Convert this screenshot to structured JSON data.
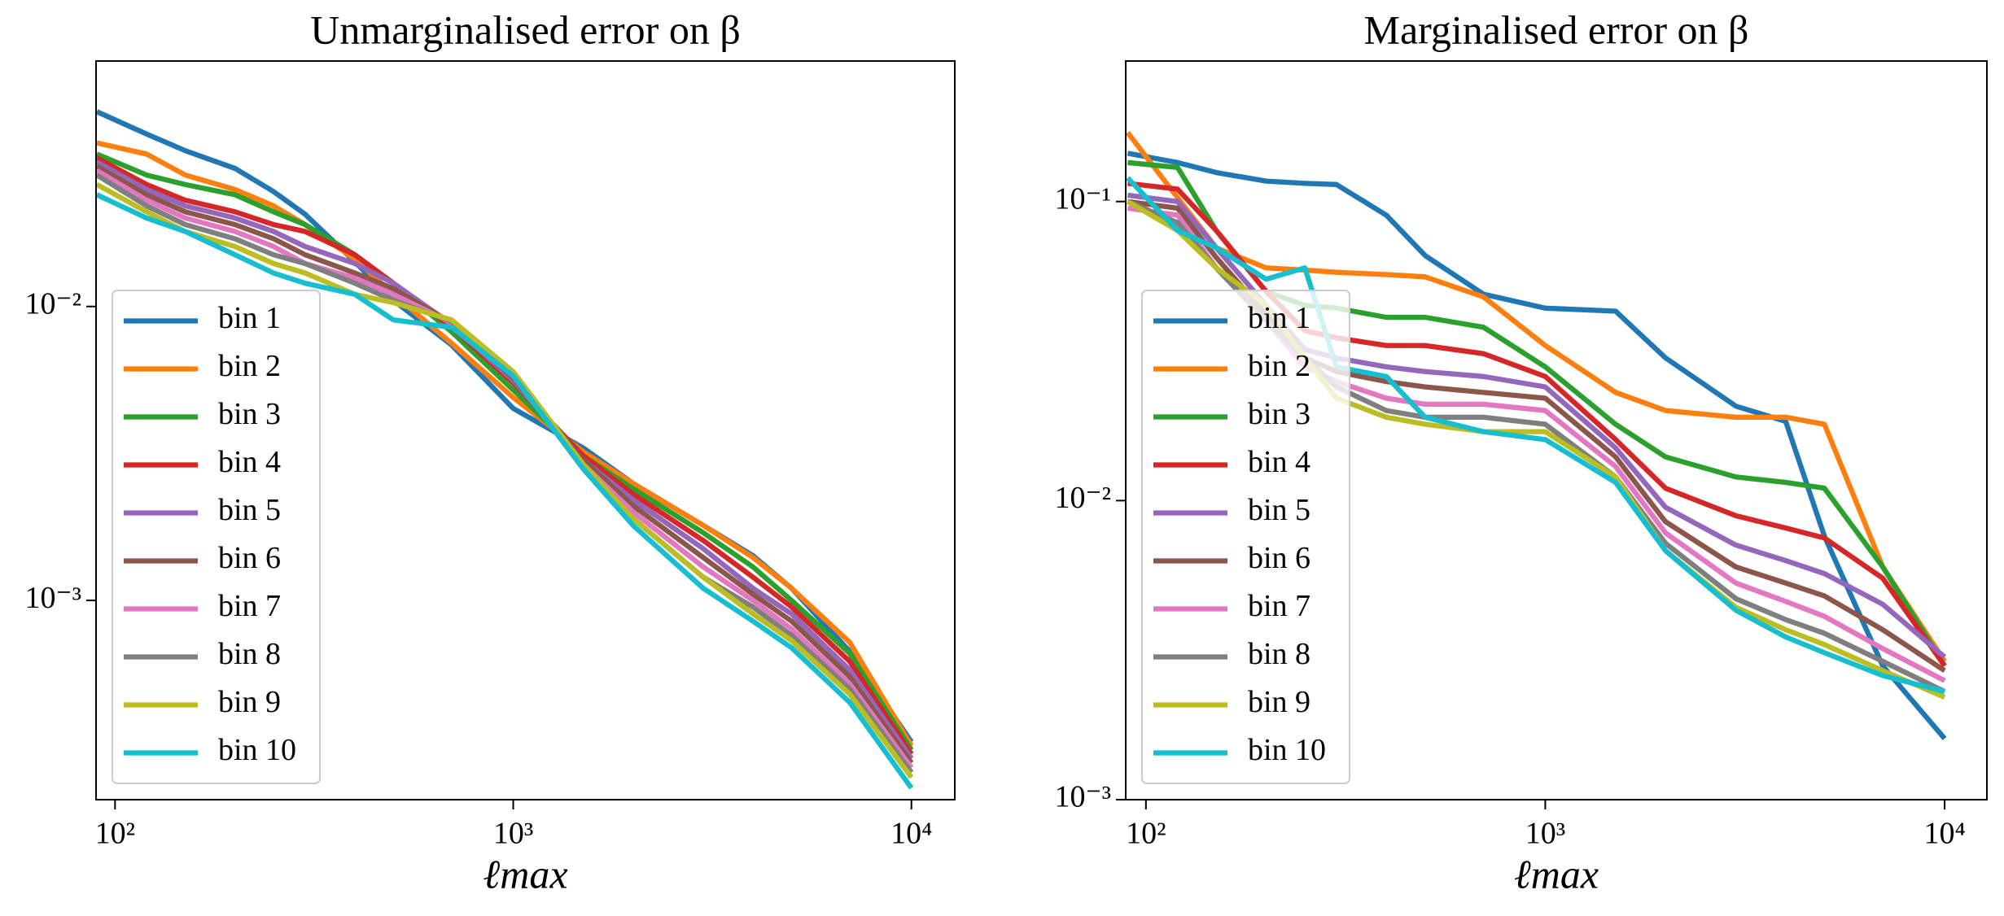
{
  "chart_data": [
    {
      "type": "line",
      "title": "Unmarginalised error on β",
      "x_label": "ℓmax",
      "xscale": "log",
      "yscale": "log",
      "legend": "lower left",
      "xlim": [
        89.6,
        12850
      ],
      "ylim": [
        0.00021,
        0.0684
      ],
      "xticks": [
        {
          "value": 100,
          "label": "10²"
        },
        {
          "value": 1000,
          "label": "10³"
        },
        {
          "value": 10000,
          "label": "10⁴"
        }
      ],
      "yticks": [
        {
          "value": 0.001,
          "label": "10⁻³"
        },
        {
          "value": 0.01,
          "label": "10⁻²"
        }
      ],
      "x": [
        90,
        120,
        150,
        200,
        250,
        300,
        400,
        500,
        700,
        1000,
        1500,
        2000,
        3000,
        4000,
        5000,
        7000,
        10000
      ],
      "series": [
        {
          "name": "bin 1",
          "color": "#1f77b4",
          "values": [
            0.046,
            0.0386,
            0.0339,
            0.0295,
            0.0246,
            0.0206,
            0.0142,
            0.0105,
            0.0074,
            0.0045,
            0.0033,
            0.0025,
            0.0018,
            0.00142,
            0.0011,
            0.00067,
            0.00033
          ]
        },
        {
          "name": "bin 2",
          "color": "#ff7f0e",
          "values": [
            0.036,
            0.033,
            0.028,
            0.025,
            0.022,
            0.019,
            0.0145,
            0.011,
            0.0075,
            0.0049,
            0.0032,
            0.0025,
            0.0018,
            0.0014,
            0.0011,
            0.00072,
            0.00032
          ]
        },
        {
          "name": "bin 3",
          "color": "#2ca02c",
          "values": [
            0.033,
            0.028,
            0.026,
            0.024,
            0.021,
            0.019,
            0.015,
            0.012,
            0.0082,
            0.0052,
            0.0031,
            0.0024,
            0.0017,
            0.0013,
            0.001,
            0.00066,
            0.00031
          ]
        },
        {
          "name": "bin 4",
          "color": "#d62728",
          "values": [
            0.032,
            0.026,
            0.023,
            0.021,
            0.019,
            0.018,
            0.015,
            0.012,
            0.0085,
            0.0055,
            0.0031,
            0.0023,
            0.0016,
            0.0012,
            0.00095,
            0.00062,
            0.0003
          ]
        },
        {
          "name": "bin 5",
          "color": "#9467bd",
          "values": [
            0.031,
            0.025,
            0.022,
            0.02,
            0.018,
            0.016,
            0.014,
            0.012,
            0.0087,
            0.0056,
            0.003,
            0.0022,
            0.0015,
            0.0011,
            0.0009,
            0.00058,
            0.00029
          ]
        },
        {
          "name": "bin 6",
          "color": "#8c564b",
          "values": [
            0.03,
            0.024,
            0.021,
            0.019,
            0.017,
            0.015,
            0.013,
            0.0115,
            0.0088,
            0.0057,
            0.003,
            0.0021,
            0.0014,
            0.00105,
            0.00085,
            0.00055,
            0.00028
          ]
        },
        {
          "name": "bin 7",
          "color": "#e377c2",
          "values": [
            0.029,
            0.023,
            0.02,
            0.018,
            0.016,
            0.014,
            0.0125,
            0.011,
            0.0088,
            0.0058,
            0.0029,
            0.002,
            0.0013,
            0.001,
            0.0008,
            0.00052,
            0.00027
          ]
        },
        {
          "name": "bin 8",
          "color": "#7f7f7f",
          "values": [
            0.028,
            0.022,
            0.019,
            0.017,
            0.015,
            0.014,
            0.012,
            0.0105,
            0.0089,
            0.0059,
            0.0029,
            0.0019,
            0.0012,
            0.00095,
            0.00076,
            0.0005,
            0.00026
          ]
        },
        {
          "name": "bin 9",
          "color": "#bcbd22",
          "values": [
            0.026,
            0.021,
            0.018,
            0.016,
            0.014,
            0.013,
            0.011,
            0.0103,
            0.009,
            0.006,
            0.0029,
            0.0019,
            0.0012,
            0.0009,
            0.00073,
            0.00048,
            0.00025
          ]
        },
        {
          "name": "bin 10",
          "color": "#17becf",
          "values": [
            0.024,
            0.02,
            0.018,
            0.015,
            0.013,
            0.012,
            0.011,
            0.009,
            0.0085,
            0.0058,
            0.0028,
            0.0018,
            0.0011,
            0.00085,
            0.00069,
            0.00045,
            0.00023
          ]
        }
      ]
    },
    {
      "type": "line",
      "title": "Marginalised error on β",
      "x_label": "ℓmax",
      "xscale": "log",
      "yscale": "log",
      "legend": "lower left",
      "xlim": [
        89,
        12760
      ],
      "ylim": [
        0.001,
        0.295
      ],
      "xticks": [
        {
          "value": 100,
          "label": "10²"
        },
        {
          "value": 1000,
          "label": "10³"
        },
        {
          "value": 10000,
          "label": "10⁴"
        }
      ],
      "yticks": [
        {
          "value": 0.001,
          "label": "10⁻³"
        },
        {
          "value": 0.01,
          "label": "10⁻²"
        },
        {
          "value": 0.1,
          "label": "10⁻¹"
        }
      ],
      "x": [
        90,
        120,
        150,
        200,
        250,
        300,
        400,
        500,
        700,
        1000,
        1500,
        2000,
        3000,
        4000,
        5000,
        7000,
        10000
      ],
      "series": [
        {
          "name": "bin 1",
          "color": "#1f77b4",
          "values": [
            0.145,
            0.135,
            0.125,
            0.117,
            0.115,
            0.114,
            0.09,
            0.066,
            0.049,
            0.044,
            0.043,
            0.03,
            0.0207,
            0.0184,
            0.0076,
            0.0028,
            0.0016
          ]
        },
        {
          "name": "bin 2",
          "color": "#ff7f0e",
          "values": [
            0.17,
            0.103,
            0.07,
            0.06,
            0.059,
            0.058,
            0.057,
            0.056,
            0.048,
            0.033,
            0.023,
            0.02,
            0.019,
            0.019,
            0.018,
            0.006,
            0.0029
          ]
        },
        {
          "name": "bin 3",
          "color": "#2ca02c",
          "values": [
            0.135,
            0.13,
            0.08,
            0.05,
            0.045,
            0.044,
            0.041,
            0.041,
            0.038,
            0.028,
            0.018,
            0.014,
            0.012,
            0.0115,
            0.011,
            0.006,
            0.0028
          ]
        },
        {
          "name": "bin 4",
          "color": "#d62728",
          "values": [
            0.115,
            0.11,
            0.08,
            0.05,
            0.037,
            0.035,
            0.033,
            0.033,
            0.031,
            0.026,
            0.016,
            0.011,
            0.0089,
            0.0081,
            0.0075,
            0.0055,
            0.0028
          ]
        },
        {
          "name": "bin 5",
          "color": "#9467bd",
          "values": [
            0.105,
            0.1,
            0.07,
            0.045,
            0.032,
            0.03,
            0.028,
            0.027,
            0.026,
            0.024,
            0.015,
            0.0095,
            0.0071,
            0.0063,
            0.0057,
            0.0045,
            0.003
          ]
        },
        {
          "name": "bin 6",
          "color": "#8c564b",
          "values": [
            0.1,
            0.095,
            0.065,
            0.042,
            0.03,
            0.027,
            0.025,
            0.024,
            0.023,
            0.022,
            0.014,
            0.0085,
            0.006,
            0.0053,
            0.0048,
            0.0037,
            0.0027
          ]
        },
        {
          "name": "bin 7",
          "color": "#e377c2",
          "values": [
            0.095,
            0.09,
            0.06,
            0.04,
            0.028,
            0.025,
            0.022,
            0.021,
            0.021,
            0.02,
            0.013,
            0.0078,
            0.0053,
            0.0046,
            0.0041,
            0.0032,
            0.0025
          ]
        },
        {
          "name": "bin 8",
          "color": "#7f7f7f",
          "values": [
            0.1,
            0.085,
            0.06,
            0.04,
            0.03,
            0.024,
            0.02,
            0.019,
            0.019,
            0.018,
            0.012,
            0.0072,
            0.0047,
            0.004,
            0.0036,
            0.0029,
            0.0023
          ]
        },
        {
          "name": "bin 9",
          "color": "#bcbd22",
          "values": [
            0.1,
            0.08,
            0.06,
            0.045,
            0.03,
            0.022,
            0.019,
            0.018,
            0.017,
            0.017,
            0.012,
            0.0068,
            0.0044,
            0.0037,
            0.0033,
            0.0027,
            0.0022
          ]
        },
        {
          "name": "bin 10",
          "color": "#17becf",
          "values": [
            0.12,
            0.08,
            0.07,
            0.055,
            0.06,
            0.028,
            0.026,
            0.019,
            0.017,
            0.016,
            0.0115,
            0.0068,
            0.0043,
            0.0035,
            0.0031,
            0.0026,
            0.0023
          ]
        }
      ]
    }
  ]
}
